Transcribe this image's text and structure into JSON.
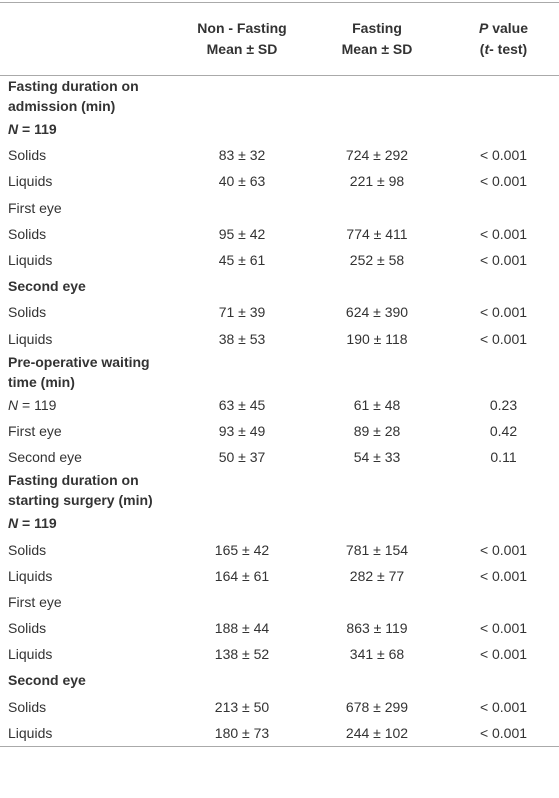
{
  "header": {
    "columns": [
      {
        "lines": [
          [
            {
              "text": "Non - Fasting"
            }
          ],
          [
            {
              "text": "Mean ± SD"
            }
          ]
        ]
      },
      {
        "lines": [
          [
            {
              "text": "Fasting"
            }
          ],
          [
            {
              "text": "Mean ± SD"
            }
          ]
        ]
      },
      {
        "lines": [
          [
            {
              "text": "P",
              "italic": true
            },
            {
              "text": " value"
            }
          ],
          [
            {
              "text": "("
            },
            {
              "text": "t",
              "italic": true
            },
            {
              "text": "- test)"
            }
          ]
        ]
      }
    ]
  },
  "table": {
    "rows": [
      {
        "label": [
          {
            "text": "Fasting duration on admission (min)"
          }
        ],
        "bold": true,
        "values": []
      },
      {
        "label": [
          {
            "text": "N",
            "italic": true
          },
          {
            "text": " = 119"
          }
        ],
        "bold": true,
        "values": []
      },
      {
        "label": [
          {
            "text": "Solids"
          }
        ],
        "values": [
          "83 ± 32",
          "724 ± 292",
          "< 0.001"
        ]
      },
      {
        "label": [
          {
            "text": "Liquids"
          }
        ],
        "values": [
          "40 ± 63",
          "221 ± 98",
          "< 0.001"
        ]
      },
      {
        "label": [
          {
            "text": "First eye"
          }
        ],
        "values": []
      },
      {
        "label": [
          {
            "text": "Solids"
          }
        ],
        "values": [
          "95 ± 42",
          "774 ± 411",
          "< 0.001"
        ]
      },
      {
        "label": [
          {
            "text": "Liquids"
          }
        ],
        "values": [
          "45 ± 61",
          "252 ± 58",
          "< 0.001"
        ]
      },
      {
        "label": [
          {
            "text": "Second eye"
          }
        ],
        "bold": true,
        "values": []
      },
      {
        "label": [
          {
            "text": "Solids"
          }
        ],
        "values": [
          "71 ± 39",
          "624 ± 390",
          "< 0.001"
        ]
      },
      {
        "label": [
          {
            "text": "Liquids"
          }
        ],
        "values": [
          "38 ± 53",
          "190 ± 118",
          "< 0.001"
        ]
      },
      {
        "label": [
          {
            "text": "Pre-operative waiting time (min)"
          }
        ],
        "bold": true,
        "values": []
      },
      {
        "label": [
          {
            "text": "N",
            "italic": true
          },
          {
            "text": " = 119"
          }
        ],
        "values": [
          "63 ± 45",
          "61 ± 48",
          "0.23"
        ]
      },
      {
        "label": [
          {
            "text": "First eye"
          }
        ],
        "values": [
          "93 ± 49",
          "89 ± 28",
          "0.42"
        ]
      },
      {
        "label": [
          {
            "text": "Second eye"
          }
        ],
        "values": [
          "50 ± 37",
          "54 ± 33",
          "0.11"
        ]
      },
      {
        "label": [
          {
            "text": "Fasting duration on starting surgery (min)"
          }
        ],
        "bold": true,
        "values": []
      },
      {
        "label": [
          {
            "text": "N",
            "italic": true
          },
          {
            "text": " = 119"
          }
        ],
        "bold": true,
        "values": []
      },
      {
        "label": [
          {
            "text": "Solids"
          }
        ],
        "values": [
          "165 ± 42",
          "781 ± 154",
          "< 0.001"
        ]
      },
      {
        "label": [
          {
            "text": "Liquids"
          }
        ],
        "values": [
          "164 ± 61",
          "282 ± 77",
          "< 0.001"
        ]
      },
      {
        "label": [
          {
            "text": "First eye"
          }
        ],
        "values": []
      },
      {
        "label": [
          {
            "text": "Solids"
          }
        ],
        "values": [
          "188 ± 44",
          "863 ± 119",
          "< 0.001"
        ]
      },
      {
        "label": [
          {
            "text": "Liquids"
          }
        ],
        "values": [
          "138 ± 52",
          "341 ± 68",
          "< 0.001"
        ]
      },
      {
        "label": [
          {
            "text": "Second eye"
          }
        ],
        "bold": true,
        "values": []
      },
      {
        "label": [
          {
            "text": "Solids"
          }
        ],
        "values": [
          "213 ± 50",
          "678 ± 299",
          "< 0.001"
        ]
      },
      {
        "label": [
          {
            "text": "Liquids"
          }
        ],
        "values": [
          "180 ± 73",
          "244 ± 102",
          "< 0.001"
        ]
      }
    ]
  }
}
